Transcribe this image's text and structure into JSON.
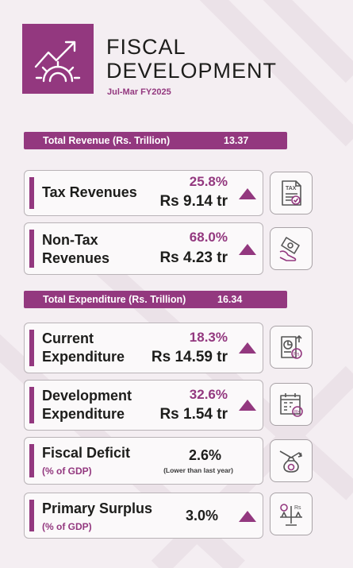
{
  "header": {
    "title_line1": "FISCAL",
    "title_line2": "DEVELOPMENT",
    "period": "Jul-Mar FY2025",
    "icon": "growth-chart-gear-icon"
  },
  "revenue": {
    "label": "Total Revenue (Rs. Trillion)",
    "value": "13.37",
    "items": [
      {
        "name_line1": "Tax Revenues",
        "name_line2": "",
        "growth": "25.8%",
        "amount": "Rs 9.14 tr",
        "trend": "up",
        "icon": "tax-document-icon"
      },
      {
        "name_line1": "Non-Tax",
        "name_line2": "Revenues",
        "growth": "68.0%",
        "amount": "Rs 4.23 tr",
        "trend": "up",
        "icon": "cash-hand-icon"
      }
    ]
  },
  "expenditure": {
    "label": "Total Expenditure (Rs. Trillion)",
    "value": "16.34",
    "items": [
      {
        "name_line1": "Current",
        "name_line2": "Expenditure",
        "growth": "18.3%",
        "amount": "Rs 14.59 tr",
        "trend": "up",
        "icon": "report-coin-icon"
      },
      {
        "name_line1": "Development",
        "name_line2": "Expenditure",
        "growth": "32.6%",
        "amount": "Rs 1.54 tr",
        "trend": "up",
        "icon": "calendar-coin-icon"
      }
    ]
  },
  "deficit": {
    "name": "Fiscal Deficit",
    "sub": "(% of GDP)",
    "value": "2.6%",
    "note": "(Lower than last year)",
    "icon": "money-bag-down-icon"
  },
  "surplus": {
    "name": "Primary Surplus",
    "sub": "(% of GDP)",
    "value": "3.0%",
    "trend": "up",
    "icon": "balance-scale-icon"
  },
  "colors": {
    "accent": "#93387f",
    "background": "#f4eef2",
    "text": "#1d1d1b"
  }
}
